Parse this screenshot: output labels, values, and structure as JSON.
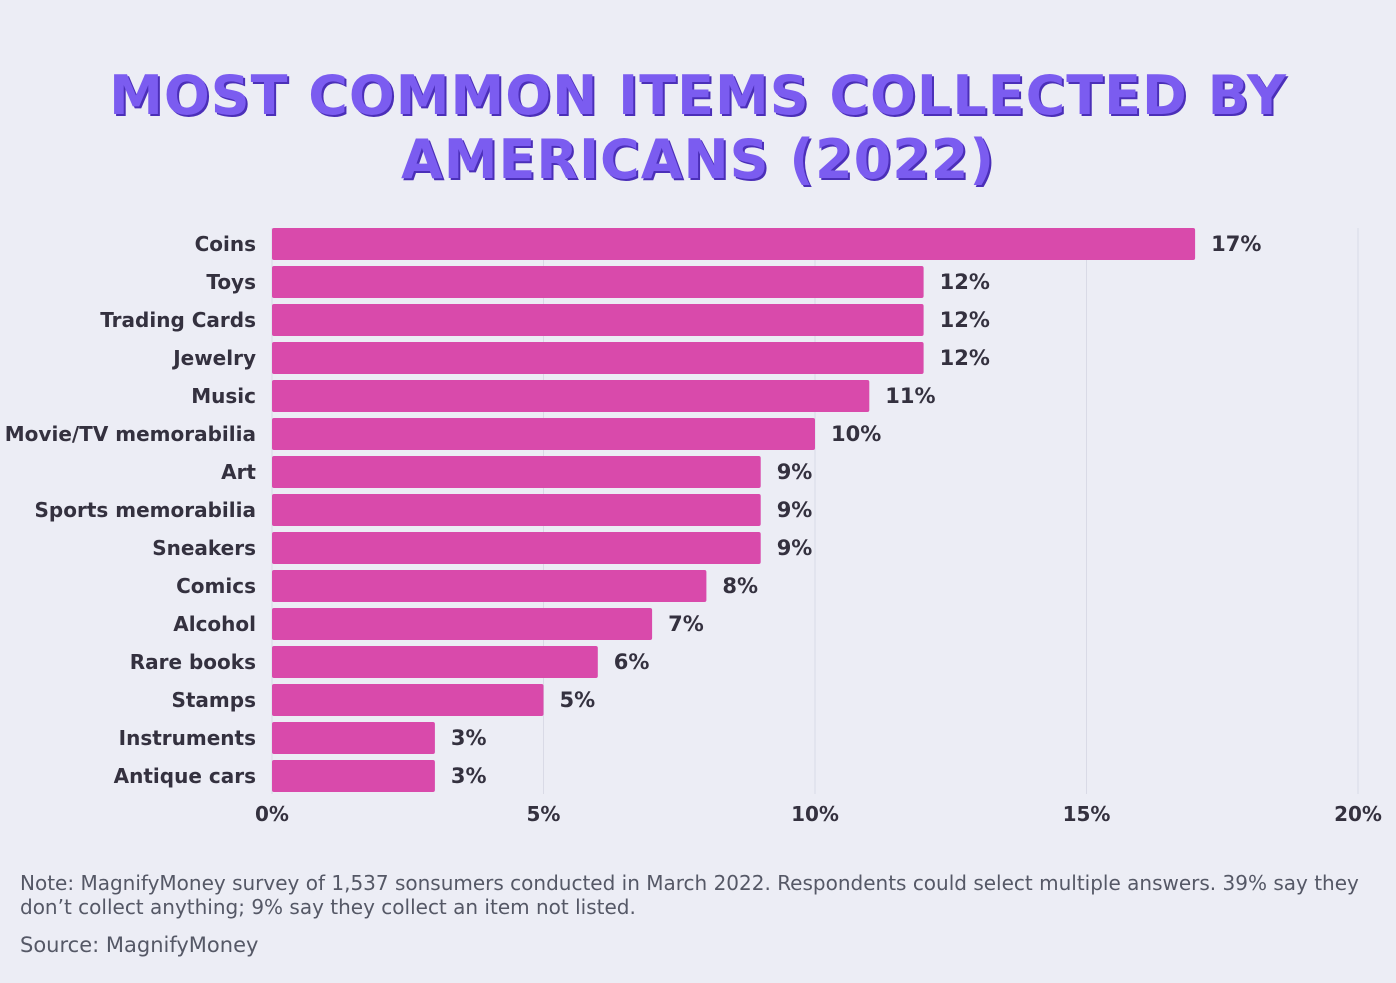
{
  "header": {
    "title": "MOST COMMON ITEMS COLLECTED BY AMERICANS (2022)"
  },
  "chart_data": {
    "type": "bar",
    "orientation": "horizontal",
    "title": "MOST COMMON ITEMS COLLECTED BY AMERICANS (2022)",
    "categories": [
      "Coins",
      "Toys",
      "Trading Cards",
      "Jewelry",
      "Music",
      "Movie/TV memorabilia",
      "Art",
      "Sports memorabilia",
      "Sneakers",
      "Comics",
      "Alcohol",
      "Rare books",
      "Stamps",
      "Instruments",
      "Antique cars"
    ],
    "values": [
      17,
      12,
      12,
      12,
      11,
      10,
      9,
      9,
      9,
      8,
      7,
      6,
      5,
      3,
      3
    ],
    "value_labels": [
      "17%",
      "12%",
      "12%",
      "12%",
      "11%",
      "10%",
      "9%",
      "9%",
      "9%",
      "8%",
      "7%",
      "6%",
      "5%",
      "3%",
      "3%"
    ],
    "x_ticks": [
      "0%",
      "5%",
      "10%",
      "15%",
      "20%"
    ],
    "xlim": [
      0,
      20
    ],
    "grid": true,
    "bar_color": "#d94aab",
    "grid_color": "#d9dae6"
  },
  "footer": {
    "note": "Note: MagnifyMoney survey of 1,537 sonsumers conducted in March 2022. Respondents could select multiple answers. 39% say they don’t collect anything; 9% say they collect an item not listed.",
    "source": "Source: MagnifyMoney"
  }
}
